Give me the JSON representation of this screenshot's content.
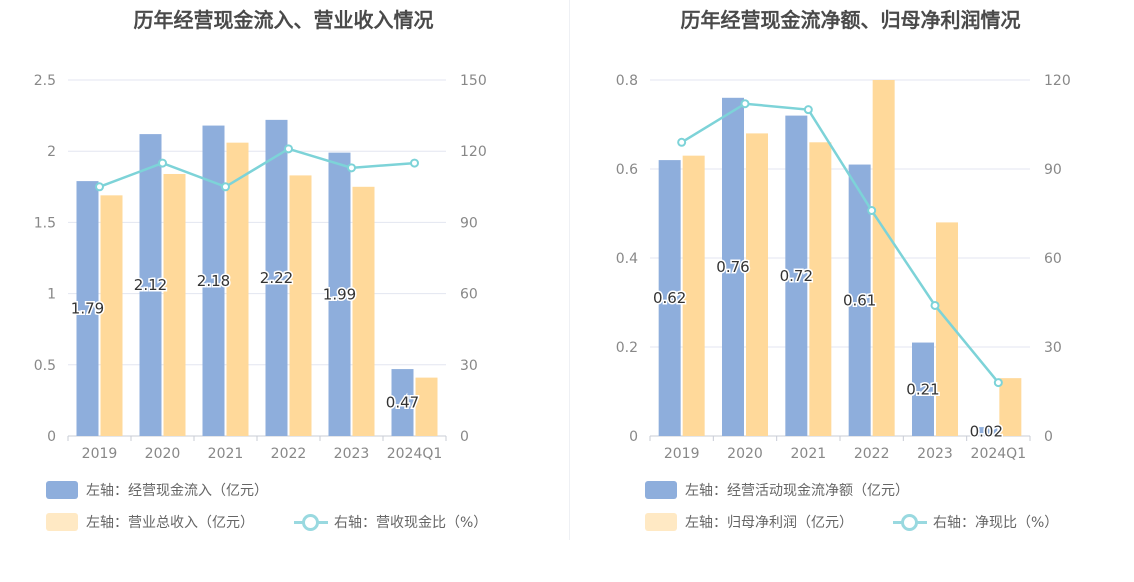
{
  "colors": {
    "bar_primary": "#8eaedc",
    "bar_secondary": "#ffd99a",
    "line": "#7dd3d8",
    "grid": "#e3e6f0",
    "axis_text": "#888888"
  },
  "chart_data": [
    {
      "type": "bar",
      "title": "历年经营现金流入、营业收入情况",
      "categories": [
        "2019",
        "2020",
        "2021",
        "2022",
        "2023",
        "2024Q1"
      ],
      "ylim_left": [
        0,
        2.5
      ],
      "yticks_left": [
        "0",
        "0.5",
        "1",
        "1.5",
        "2",
        "2.5"
      ],
      "ylim_right": [
        0,
        150
      ],
      "yticks_right": [
        "0",
        "30",
        "60",
        "90",
        "120",
        "150"
      ],
      "series": [
        {
          "name": "左轴：经营现金流入（亿元）",
          "type": "bar",
          "axis": "left",
          "values": [
            1.79,
            2.12,
            2.18,
            2.22,
            1.99,
            0.47
          ],
          "labels": [
            "1.79",
            "2.12",
            "2.18",
            "2.22",
            "1.99",
            "0.47"
          ]
        },
        {
          "name": "左轴：营业总收入（亿元）",
          "type": "bar",
          "axis": "left",
          "values": [
            1.69,
            1.84,
            2.06,
            1.83,
            1.75,
            0.41
          ]
        },
        {
          "name": "右轴：营收现金比（%）",
          "type": "line",
          "axis": "right",
          "values": [
            105,
            115,
            105,
            121,
            113,
            115
          ]
        }
      ],
      "grid": true,
      "legend_position": "bottom-left"
    },
    {
      "type": "bar",
      "title": "历年经营现金流净额、归母净利润情况",
      "categories": [
        "2019",
        "2020",
        "2021",
        "2022",
        "2023",
        "2024Q1"
      ],
      "ylim_left": [
        0,
        0.8
      ],
      "yticks_left": [
        "0",
        "0.2",
        "0.4",
        "0.6",
        "0.8"
      ],
      "ylim_right": [
        0,
        120
      ],
      "yticks_right": [
        "0",
        "30",
        "60",
        "90",
        "120"
      ],
      "series": [
        {
          "name": "左轴：经营活动现金流净额（亿元）",
          "type": "bar",
          "axis": "left",
          "values": [
            0.62,
            0.76,
            0.72,
            0.61,
            0.21,
            0.02
          ],
          "labels": [
            "0.62",
            "0.76",
            "0.72",
            "0.61",
            "0.21",
            "0.02"
          ]
        },
        {
          "name": "左轴：归母净利润（亿元）",
          "type": "bar",
          "axis": "left",
          "values": [
            0.63,
            0.68,
            0.66,
            0.8,
            0.48,
            0.13
          ]
        },
        {
          "name": "右轴：净现比（%）",
          "type": "line",
          "axis": "right",
          "values": [
            99,
            112,
            110,
            76,
            44,
            18
          ]
        }
      ],
      "grid": true,
      "legend_position": "bottom-left"
    }
  ]
}
